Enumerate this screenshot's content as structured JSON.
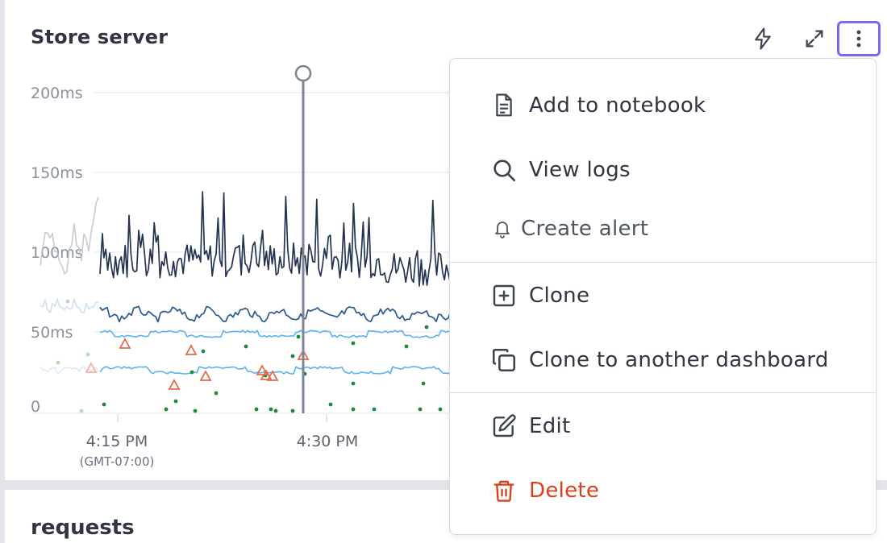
{
  "panel": {
    "title": "Store server",
    "toolbar": {
      "bolt_icon": "lightning-icon",
      "expand_icon": "expand-icon",
      "more_icon": "more-vertical-icon"
    }
  },
  "chart_data": {
    "type": "line",
    "y_ticks": [
      "200ms",
      "150ms",
      "100ms",
      "50ms",
      "0"
    ],
    "x_ticks": [
      "4:15 PM",
      "4:30 PM"
    ],
    "timezone": "(GMT-07:00)",
    "ylim": [
      0,
      200
    ],
    "colors": {
      "series_dark": "#24334f",
      "series_mid": "#2c5a8c",
      "series_light": "#5cb2ea",
      "anomaly": "#e46a4f",
      "dots": "#1c8a3e",
      "cursor": "#7d8594"
    }
  },
  "next_panel": {
    "title": "requests"
  },
  "menu": {
    "items": [
      {
        "label": "Add to notebook",
        "icon": "notebook-icon"
      },
      {
        "label": "View logs",
        "icon": "search-icon"
      },
      {
        "label": "Create alert",
        "icon": "bell-icon"
      },
      {
        "label": "Clone",
        "icon": "plus-square-icon"
      },
      {
        "label": "Clone to another dashboard",
        "icon": "copy-icon"
      },
      {
        "label": "Edit",
        "icon": "edit-icon"
      },
      {
        "label": "Delete",
        "icon": "trash-icon"
      }
    ],
    "delete_color": "#d8401f",
    "focus_color": "#7b6af0"
  }
}
